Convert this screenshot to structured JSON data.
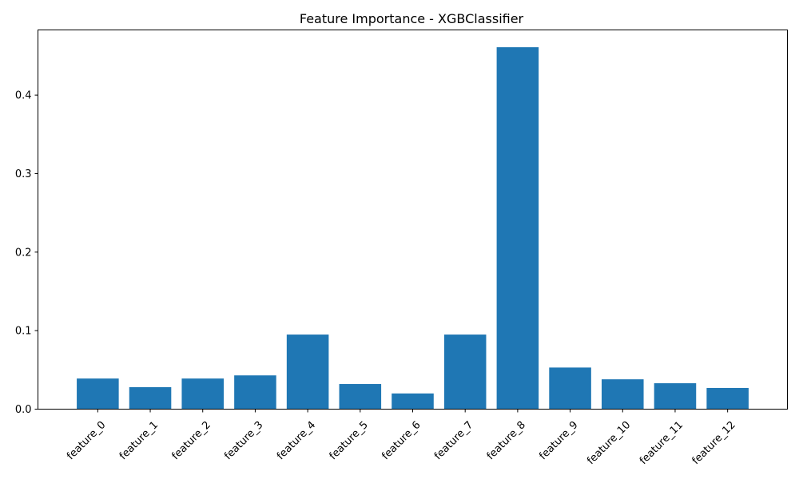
{
  "chart_data": {
    "type": "bar",
    "title": "Feature Importance - XGBClassifier",
    "xlabel": "",
    "ylabel": "",
    "categories": [
      "feature_0",
      "feature_1",
      "feature_2",
      "feature_3",
      "feature_4",
      "feature_5",
      "feature_6",
      "feature_7",
      "feature_8",
      "feature_9",
      "feature_10",
      "feature_11",
      "feature_12"
    ],
    "values": [
      0.039,
      0.028,
      0.039,
      0.043,
      0.095,
      0.032,
      0.02,
      0.095,
      0.461,
      0.053,
      0.038,
      0.033,
      0.027
    ],
    "ylim": [
      0,
      0.483
    ],
    "yticks": [
      0.0,
      0.1,
      0.2,
      0.3,
      0.4
    ],
    "ytick_labels": [
      "0.0",
      "0.1",
      "0.2",
      "0.3",
      "0.4"
    ],
    "bar_color": "#1f77b4",
    "grid": false,
    "xtick_rotation": 45
  }
}
